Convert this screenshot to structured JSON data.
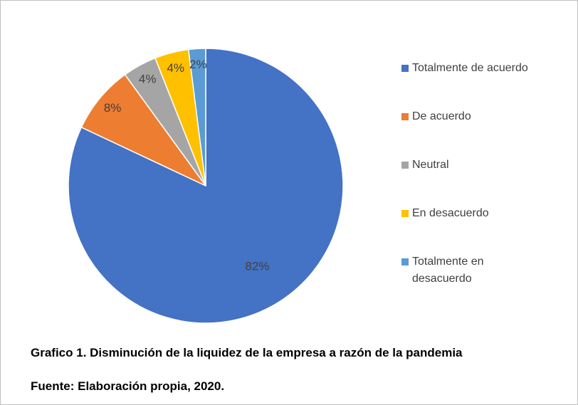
{
  "chart_data": {
    "type": "pie",
    "title": "Grafico 1. Disminución de la liquidez de la empresa a razón de la pandemia",
    "source": "Fuente: Elaboración propia, 2020.",
    "categories": [
      "Totalmente de acuerdo",
      "De acuerdo",
      "Neutral",
      "En desacuerdo",
      "Totalmente en desacuerdo"
    ],
    "values": [
      82,
      8,
      4,
      4,
      2
    ],
    "value_labels": [
      "82%",
      "8%",
      "4%",
      "4%",
      "2%"
    ],
    "colors": [
      "#4472c4",
      "#ed7d31",
      "#a5a5a5",
      "#ffc000",
      "#5b9bd5"
    ],
    "legend": "right"
  }
}
